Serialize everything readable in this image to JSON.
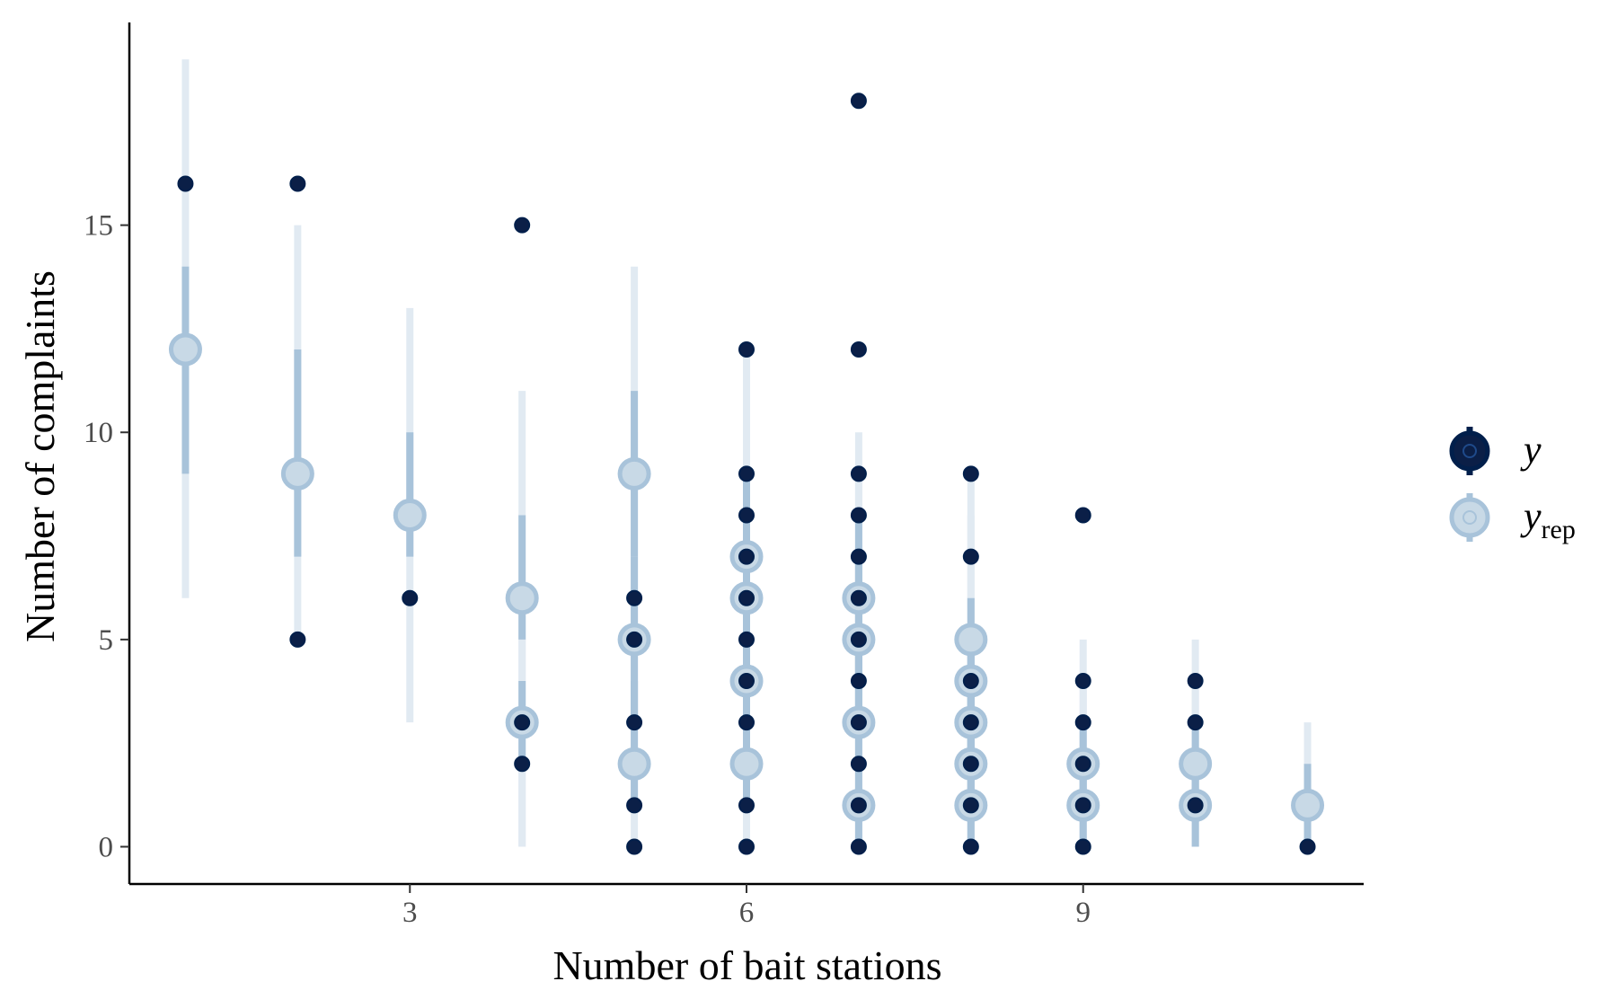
{
  "chart_data": {
    "type": "scatter",
    "xlabel": "Number of bait stations",
    "ylabel": "Number of complaints",
    "xlim": [
      0.5,
      11.5
    ],
    "ylim": [
      -0.9,
      20
    ],
    "x_ticks": [
      3,
      6,
      9
    ],
    "y_ticks": [
      0,
      5,
      10,
      15
    ],
    "grid": false,
    "legend_position": "right",
    "legend": [
      {
        "key": "y",
        "label": "y",
        "subscript": ""
      },
      {
        "key": "yrep",
        "label": "y",
        "subscript": "rep"
      }
    ],
    "colors": {
      "y_fill": "#0b1f47",
      "y_stroke": "#011f4b",
      "yrep_fill": "#c8d9e6",
      "yrep_stroke": "#a8c3da",
      "interval_inner": "#a8c3da",
      "interval_outer": "#e1eaf2",
      "axis": "#000000"
    },
    "yrep_intervals": [
      {
        "x": 1,
        "median": 12,
        "inner": [
          9,
          14
        ],
        "outer": [
          6,
          19
        ]
      },
      {
        "x": 2,
        "median": 9,
        "inner": [
          7,
          12
        ],
        "outer": [
          5,
          15
        ]
      },
      {
        "x": 3,
        "median": 8,
        "inner": [
          7,
          10
        ],
        "outer": [
          3,
          13
        ]
      },
      {
        "x": 4,
        "median": 6,
        "inner": [
          5,
          8
        ],
        "outer": [
          0,
          11
        ]
      },
      {
        "x": 4,
        "median": 3,
        "inner": [
          2,
          4
        ],
        "outer": [
          0,
          6
        ]
      },
      {
        "x": 5,
        "median": 9,
        "inner": [
          7,
          11
        ],
        "outer": [
          4,
          14
        ]
      },
      {
        "x": 5,
        "median": 5,
        "inner": [
          3,
          7
        ],
        "outer": [
          1,
          10
        ]
      },
      {
        "x": 5,
        "median": 2,
        "inner": [
          1,
          4
        ],
        "outer": [
          0,
          6
        ]
      },
      {
        "x": 6,
        "median": 7,
        "inner": [
          5,
          9
        ],
        "outer": [
          3,
          12
        ]
      },
      {
        "x": 6,
        "median": 6,
        "inner": [
          4,
          8
        ],
        "outer": [
          2,
          11
        ]
      },
      {
        "x": 6,
        "median": 4,
        "inner": [
          3,
          6
        ],
        "outer": [
          1,
          8
        ]
      },
      {
        "x": 6,
        "median": 2,
        "inner": [
          1,
          3
        ],
        "outer": [
          0,
          5
        ]
      },
      {
        "x": 7,
        "median": 6,
        "inner": [
          4,
          8
        ],
        "outer": [
          2,
          10
        ]
      },
      {
        "x": 7,
        "median": 5,
        "inner": [
          3,
          7
        ],
        "outer": [
          1,
          9
        ]
      },
      {
        "x": 7,
        "median": 3,
        "inner": [
          2,
          5
        ],
        "outer": [
          0,
          7
        ]
      },
      {
        "x": 7,
        "median": 1,
        "inner": [
          0,
          2
        ],
        "outer": [
          0,
          4
        ]
      },
      {
        "x": 8,
        "median": 5,
        "inner": [
          3,
          6
        ],
        "outer": [
          1,
          9
        ]
      },
      {
        "x": 8,
        "median": 4,
        "inner": [
          2,
          5
        ],
        "outer": [
          1,
          8
        ]
      },
      {
        "x": 8,
        "median": 3,
        "inner": [
          2,
          4
        ],
        "outer": [
          0,
          6
        ]
      },
      {
        "x": 8,
        "median": 2,
        "inner": [
          1,
          3
        ],
        "outer": [
          0,
          5
        ]
      },
      {
        "x": 8,
        "median": 1,
        "inner": [
          0,
          2
        ],
        "outer": [
          0,
          4
        ]
      },
      {
        "x": 9,
        "median": 2,
        "inner": [
          1,
          3
        ],
        "outer": [
          0,
          5
        ]
      },
      {
        "x": 9,
        "median": 1,
        "inner": [
          0,
          2
        ],
        "outer": [
          0,
          4
        ]
      },
      {
        "x": 10,
        "median": 2,
        "inner": [
          1,
          3
        ],
        "outer": [
          0,
          5
        ]
      },
      {
        "x": 10,
        "median": 1,
        "inner": [
          0,
          2
        ],
        "outer": [
          0,
          4
        ]
      },
      {
        "x": 11,
        "median": 1,
        "inner": [
          0,
          2
        ],
        "outer": [
          0,
          3
        ]
      }
    ],
    "y_observed": [
      {
        "x": 1,
        "y": 16
      },
      {
        "x": 2,
        "y": 16
      },
      {
        "x": 2,
        "y": 5
      },
      {
        "x": 3,
        "y": 6
      },
      {
        "x": 4,
        "y": 15
      },
      {
        "x": 4,
        "y": 3
      },
      {
        "x": 4,
        "y": 2
      },
      {
        "x": 5,
        "y": 6
      },
      {
        "x": 5,
        "y": 5
      },
      {
        "x": 5,
        "y": 3
      },
      {
        "x": 5,
        "y": 1
      },
      {
        "x": 5,
        "y": 0
      },
      {
        "x": 6,
        "y": 12
      },
      {
        "x": 6,
        "y": 9
      },
      {
        "x": 6,
        "y": 8
      },
      {
        "x": 6,
        "y": 7
      },
      {
        "x": 6,
        "y": 6
      },
      {
        "x": 6,
        "y": 5
      },
      {
        "x": 6,
        "y": 4
      },
      {
        "x": 6,
        "y": 3
      },
      {
        "x": 6,
        "y": 1
      },
      {
        "x": 6,
        "y": 0
      },
      {
        "x": 7,
        "y": 18
      },
      {
        "x": 7,
        "y": 12
      },
      {
        "x": 7,
        "y": 9
      },
      {
        "x": 7,
        "y": 8
      },
      {
        "x": 7,
        "y": 7
      },
      {
        "x": 7,
        "y": 6
      },
      {
        "x": 7,
        "y": 5
      },
      {
        "x": 7,
        "y": 4
      },
      {
        "x": 7,
        "y": 3
      },
      {
        "x": 7,
        "y": 2
      },
      {
        "x": 7,
        "y": 1
      },
      {
        "x": 7,
        "y": 0
      },
      {
        "x": 8,
        "y": 9
      },
      {
        "x": 8,
        "y": 7
      },
      {
        "x": 8,
        "y": 4
      },
      {
        "x": 8,
        "y": 3
      },
      {
        "x": 8,
        "y": 2
      },
      {
        "x": 8,
        "y": 1
      },
      {
        "x": 8,
        "y": 0
      },
      {
        "x": 9,
        "y": 8
      },
      {
        "x": 9,
        "y": 4
      },
      {
        "x": 9,
        "y": 3
      },
      {
        "x": 9,
        "y": 2
      },
      {
        "x": 9,
        "y": 1
      },
      {
        "x": 9,
        "y": 0
      },
      {
        "x": 10,
        "y": 4
      },
      {
        "x": 10,
        "y": 3
      },
      {
        "x": 10,
        "y": 1
      },
      {
        "x": 11,
        "y": 0
      }
    ]
  }
}
